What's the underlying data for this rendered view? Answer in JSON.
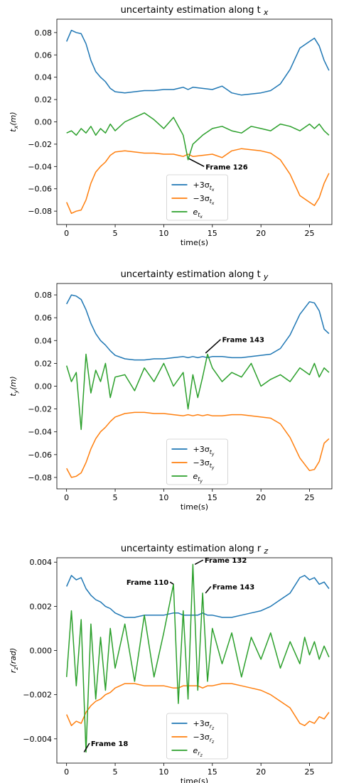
{
  "chart_data": [
    {
      "type": "line",
      "title": "uncertainty estimation along t",
      "title_sub": "x",
      "xlabel": "time(s)",
      "ylabel": "t",
      "ylabel_sub": "x",
      "ylabel_unit": "(m)",
      "xlim": [
        -1,
        27.3
      ],
      "ylim": [
        -0.092,
        0.092
      ],
      "xticks": [
        0,
        5,
        10,
        15,
        20,
        25
      ],
      "xtick_labels": [
        "0",
        "5",
        "10",
        "15",
        "20",
        "25"
      ],
      "yticks": [
        -0.08,
        -0.06,
        -0.04,
        -0.02,
        0.0,
        0.02,
        0.04,
        0.06,
        0.08
      ],
      "ytick_labels": [
        "−0.08",
        "−0.06",
        "−0.04",
        "−0.02",
        "0.00",
        "0.02",
        "0.04",
        "0.06",
        "0.08"
      ],
      "legend_position": "lower-center",
      "x": [
        0,
        0.5,
        1,
        1.5,
        2,
        2.5,
        3,
        3.5,
        4,
        4.5,
        5,
        6,
        7,
        8,
        9,
        10,
        11,
        12,
        12.5,
        13,
        14,
        15,
        16,
        17,
        18,
        19,
        20,
        21,
        22,
        23,
        24,
        25,
        25.5,
        26,
        26.5,
        27
      ],
      "series": [
        {
          "name": "+3σ",
          "name_sub": "t",
          "name_sub2": "x",
          "color": "#1f77b4",
          "values": [
            0.072,
            0.082,
            0.08,
            0.079,
            0.07,
            0.055,
            0.045,
            0.04,
            0.036,
            0.03,
            0.027,
            0.026,
            0.027,
            0.028,
            0.028,
            0.029,
            0.029,
            0.031,
            0.029,
            0.031,
            0.03,
            0.029,
            0.032,
            0.026,
            0.024,
            0.025,
            0.026,
            0.028,
            0.034,
            0.047,
            0.066,
            0.072,
            0.075,
            0.068,
            0.055,
            0.046
          ]
        },
        {
          "name": "−3σ",
          "name_sub": "t",
          "name_sub2": "x",
          "color": "#ff7f0e",
          "values": [
            -0.072,
            -0.082,
            -0.08,
            -0.079,
            -0.07,
            -0.055,
            -0.045,
            -0.04,
            -0.036,
            -0.03,
            -0.027,
            -0.026,
            -0.027,
            -0.028,
            -0.028,
            -0.029,
            -0.029,
            -0.031,
            -0.029,
            -0.031,
            -0.03,
            -0.029,
            -0.032,
            -0.026,
            -0.024,
            -0.025,
            -0.026,
            -0.028,
            -0.034,
            -0.047,
            -0.066,
            -0.072,
            -0.075,
            -0.068,
            -0.055,
            -0.046
          ]
        },
        {
          "name": "e",
          "name_sub": "t",
          "name_sub2": "x",
          "color": "#2ca02c",
          "values": [
            -0.01,
            -0.008,
            -0.012,
            -0.006,
            -0.01,
            -0.004,
            -0.012,
            -0.006,
            -0.01,
            -0.002,
            -0.008,
            0.0,
            0.004,
            0.008,
            0.002,
            -0.006,
            0.004,
            -0.012,
            -0.034,
            -0.02,
            -0.012,
            -0.006,
            -0.004,
            -0.008,
            -0.01,
            -0.004,
            -0.006,
            -0.008,
            -0.002,
            -0.004,
            -0.008,
            -0.002,
            -0.006,
            -0.002,
            -0.008,
            -0.012
          ]
        }
      ],
      "annotations": [
        {
          "text": "Frame 126",
          "x": 12.6,
          "y": -0.033,
          "text_x": 14.3,
          "text_y": -0.04
        }
      ]
    },
    {
      "type": "line",
      "title": "uncertainty estimation along t",
      "title_sub": "y",
      "xlabel": "time(s)",
      "ylabel": "t",
      "ylabel_sub": "y",
      "ylabel_unit": "(m)",
      "xlim": [
        -1,
        27.3
      ],
      "ylim": [
        -0.09,
        0.09
      ],
      "xticks": [
        0,
        5,
        10,
        15,
        20,
        25
      ],
      "xtick_labels": [
        "0",
        "5",
        "10",
        "15",
        "20",
        "25"
      ],
      "yticks": [
        -0.08,
        -0.06,
        -0.04,
        -0.02,
        0.0,
        0.02,
        0.04,
        0.06,
        0.08
      ],
      "ytick_labels": [
        "−0.08",
        "−0.06",
        "−0.04",
        "−0.02",
        "0.00",
        "0.02",
        "0.04",
        "0.06",
        "0.08"
      ],
      "legend_position": "lower-center",
      "x": [
        0,
        0.5,
        1,
        1.5,
        2,
        2.5,
        3,
        3.5,
        4,
        4.5,
        5,
        6,
        7,
        8,
        9,
        10,
        11,
        12,
        12.5,
        13,
        13.5,
        14,
        14.5,
        15,
        16,
        17,
        18,
        19,
        20,
        21,
        22,
        23,
        24,
        25,
        25.5,
        26,
        26.5,
        27
      ],
      "series": [
        {
          "name": "+3σ",
          "name_sub": "t",
          "name_sub2": "y",
          "color": "#1f77b4",
          "values": [
            0.072,
            0.08,
            0.079,
            0.076,
            0.067,
            0.055,
            0.046,
            0.04,
            0.036,
            0.031,
            0.027,
            0.024,
            0.023,
            0.023,
            0.024,
            0.024,
            0.025,
            0.026,
            0.025,
            0.026,
            0.025,
            0.026,
            0.025,
            0.026,
            0.026,
            0.025,
            0.025,
            0.026,
            0.027,
            0.028,
            0.033,
            0.045,
            0.063,
            0.074,
            0.073,
            0.066,
            0.05,
            0.046
          ]
        },
        {
          "name": "−3σ",
          "name_sub": "t",
          "name_sub2": "y",
          "color": "#ff7f0e",
          "values": [
            -0.072,
            -0.08,
            -0.079,
            -0.076,
            -0.067,
            -0.055,
            -0.046,
            -0.04,
            -0.036,
            -0.031,
            -0.027,
            -0.024,
            -0.023,
            -0.023,
            -0.024,
            -0.024,
            -0.025,
            -0.026,
            -0.025,
            -0.026,
            -0.025,
            -0.026,
            -0.025,
            -0.026,
            -0.026,
            -0.025,
            -0.025,
            -0.026,
            -0.027,
            -0.028,
            -0.033,
            -0.045,
            -0.063,
            -0.074,
            -0.073,
            -0.066,
            -0.05,
            -0.046
          ]
        },
        {
          "name": "e",
          "name_sub": "t",
          "name_sub2": "y",
          "color": "#2ca02c",
          "values": [
            0.018,
            0.004,
            0.012,
            -0.038,
            0.028,
            -0.006,
            0.014,
            0.004,
            0.02,
            -0.01,
            0.008,
            0.01,
            -0.004,
            0.016,
            0.004,
            0.02,
            0.0,
            0.012,
            -0.02,
            0.01,
            -0.01,
            0.008,
            0.028,
            0.016,
            0.004,
            0.012,
            0.008,
            0.02,
            0.0,
            0.006,
            0.01,
            0.004,
            0.016,
            0.01,
            0.02,
            0.008,
            0.016,
            0.012
          ]
        }
      ],
      "annotations": [
        {
          "text": "Frame 143",
          "x": 14.3,
          "y": 0.029,
          "text_x": 16.0,
          "text_y": 0.041
        }
      ]
    },
    {
      "type": "line",
      "title": "uncertainty estimation along r",
      "title_sub": "z",
      "xlabel": "time(s)",
      "ylabel": "r",
      "ylabel_sub": "z",
      "ylabel_unit": "(rad)",
      "xlim": [
        -1,
        27.3
      ],
      "ylim": [
        -0.0051,
        0.0042
      ],
      "xticks": [
        0,
        5,
        10,
        15,
        20,
        25
      ],
      "xtick_labels": [
        "0",
        "5",
        "10",
        "15",
        "20",
        "25"
      ],
      "yticks": [
        -0.004,
        -0.002,
        0.0,
        0.002,
        0.004
      ],
      "ytick_labels": [
        "−0.004",
        "−0.002",
        "0.000",
        "0.002",
        "0.004"
      ],
      "legend_position": "lower-center",
      "x": [
        0,
        0.5,
        1,
        1.5,
        2,
        2.5,
        3,
        3.5,
        4,
        4.5,
        5,
        6,
        7,
        8,
        9,
        10,
        11,
        11.5,
        12,
        12.5,
        13,
        13.5,
        14,
        14.5,
        15,
        16,
        17,
        18,
        19,
        20,
        21,
        22,
        23,
        24,
        24.5,
        25,
        25.5,
        26,
        26.5,
        27
      ],
      "series": [
        {
          "name": "+3σ",
          "name_sub": "r",
          "name_sub2": "z",
          "color": "#1f77b4",
          "values": [
            0.0029,
            0.0034,
            0.0032,
            0.0033,
            0.0028,
            0.0025,
            0.0023,
            0.0022,
            0.002,
            0.0019,
            0.0017,
            0.0015,
            0.0015,
            0.0016,
            0.0016,
            0.0016,
            0.0017,
            0.0017,
            0.0016,
            0.0016,
            0.0016,
            0.0016,
            0.0017,
            0.0016,
            0.0016,
            0.0015,
            0.0015,
            0.0016,
            0.0017,
            0.0018,
            0.002,
            0.0023,
            0.0026,
            0.0033,
            0.0034,
            0.0032,
            0.0033,
            0.003,
            0.0031,
            0.0028
          ]
        },
        {
          "name": "−3σ",
          "name_sub": "r",
          "name_sub2": "z",
          "color": "#ff7f0e",
          "values": [
            -0.0029,
            -0.0034,
            -0.0032,
            -0.0033,
            -0.0028,
            -0.0025,
            -0.0023,
            -0.0022,
            -0.002,
            -0.0019,
            -0.0017,
            -0.0015,
            -0.0015,
            -0.0016,
            -0.0016,
            -0.0016,
            -0.0017,
            -0.0017,
            -0.0016,
            -0.0016,
            -0.0016,
            -0.0016,
            -0.0017,
            -0.0016,
            -0.0016,
            -0.0015,
            -0.0015,
            -0.0016,
            -0.0017,
            -0.0018,
            -0.002,
            -0.0023,
            -0.0026,
            -0.0033,
            -0.0034,
            -0.0032,
            -0.0033,
            -0.003,
            -0.0031,
            -0.0028
          ]
        },
        {
          "name": "e",
          "name_sub": "r",
          "name_sub2": "z",
          "color": "#2ca02c",
          "values": [
            -0.0012,
            0.0018,
            -0.0016,
            0.0014,
            -0.0046,
            0.0012,
            -0.0022,
            0.0006,
            -0.0018,
            0.001,
            -0.0008,
            0.0012,
            -0.0014,
            0.0016,
            -0.0012,
            0.0008,
            0.003,
            -0.0024,
            0.0018,
            -0.0022,
            0.0039,
            -0.0018,
            0.0026,
            -0.0014,
            0.001,
            -0.0006,
            0.0008,
            -0.0012,
            0.0006,
            -0.0004,
            0.0008,
            -0.0008,
            0.0004,
            -0.0006,
            0.0006,
            -0.0002,
            0.0004,
            -0.0004,
            0.0002,
            -0.0003
          ]
        }
      ],
      "annotations": [
        {
          "text": "Frame 110",
          "x": 11.0,
          "y": 0.003,
          "text_x": 10.5,
          "text_y": 0.0031
        },
        {
          "text": "Frame 132",
          "x": 13.2,
          "y": 0.0039,
          "text_x": 14.2,
          "text_y": 0.0041
        },
        {
          "text": "Frame 143",
          "x": 14.3,
          "y": 0.0026,
          "text_x": 15.0,
          "text_y": 0.0029
        },
        {
          "text": "Frame 18",
          "x": 1.8,
          "y": -0.0046,
          "text_x": 2.5,
          "text_y": -0.0042
        }
      ]
    }
  ]
}
